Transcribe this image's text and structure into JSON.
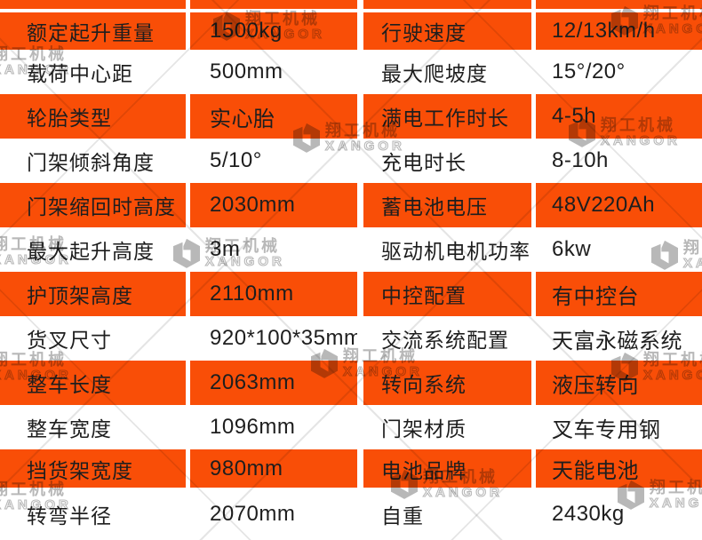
{
  "table": {
    "rows": [
      [
        "额定起升重量",
        "1500kg",
        "行驶速度",
        "12/13km/h"
      ],
      [
        "载荷中心距",
        "500mm",
        "最大爬坡度",
        "15°/20°"
      ],
      [
        "轮胎类型",
        "实心胎",
        "满电工作时长",
        "4-5h"
      ],
      [
        "门架倾斜角度",
        "5/10°",
        "充电时长",
        "8-10h"
      ],
      [
        "门架缩回时高度",
        "2030mm",
        "蓄电池电压",
        "48V220Ah"
      ],
      [
        "最大起升高度",
        "3m",
        "驱动机电机功率",
        "6kw"
      ],
      [
        "护顶架高度",
        "2110mm",
        "中控配置",
        "有中控台"
      ],
      [
        "货叉尺寸",
        "920*100*35mm",
        "交流系统配置",
        "天富永磁系统"
      ],
      [
        "整车长度",
        "2063mm",
        "转向系统",
        "液压转向"
      ],
      [
        "整车宽度",
        "1096mm",
        "门架材质",
        "叉车专用钢"
      ],
      [
        "挡货架宽度",
        "980mm",
        "电池品牌",
        "天能电池"
      ],
      [
        "转弯半径",
        "2070mm",
        "自重",
        "2430kg"
      ]
    ]
  },
  "watermark": {
    "brand_cn": "翔工机械",
    "brand_en": "XANGOR"
  },
  "colors": {
    "orange": "#f94e07",
    "text": "#1e1e1e"
  }
}
